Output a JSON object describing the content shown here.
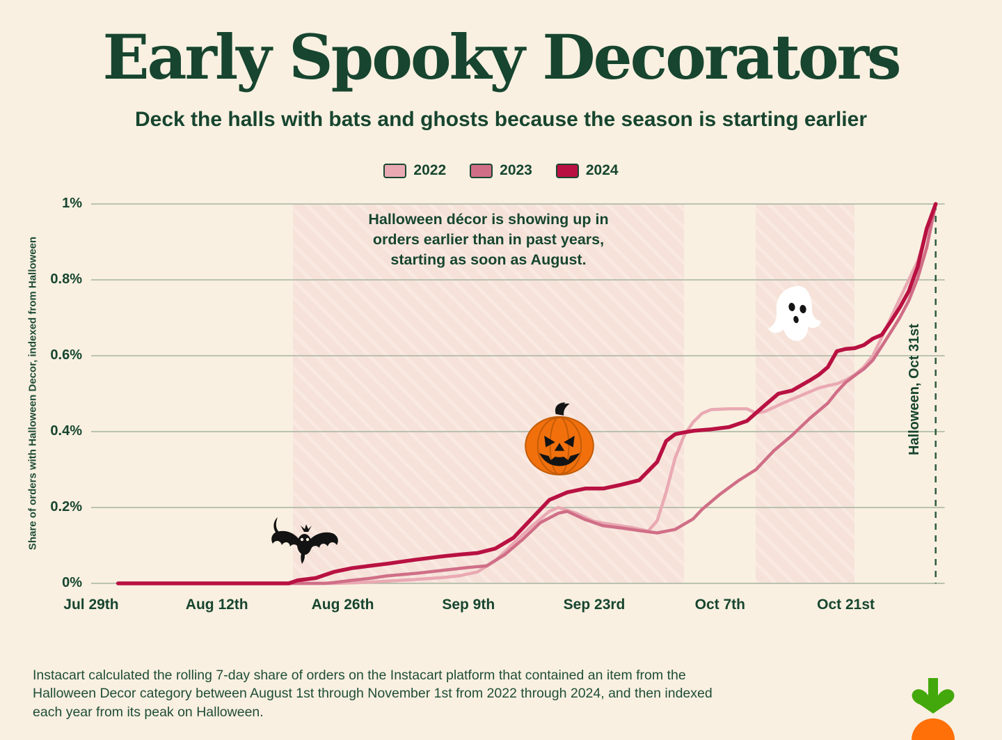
{
  "header": {
    "title": "Early Spooky Decorators",
    "subtitle": "Deck the halls with bats and ghosts because the season is starting earlier"
  },
  "legend": {
    "items": [
      {
        "label": "2022",
        "color": "#e9a9b3"
      },
      {
        "label": "2023",
        "color": "#d06e87"
      },
      {
        "label": "2024",
        "color": "#b81142"
      }
    ]
  },
  "chart": {
    "y_axis_title": "Share of orders with Halloween Decor, indexed from Halloween",
    "annotation": "Halloween décor is showing up in\norders earlier than in past years,\nstarting as soon as August.",
    "halloween_label": "Halloween, Oct 31st"
  },
  "chart_data": {
    "type": "line",
    "title": "Early Spooky Decorators",
    "xlabel": "",
    "ylabel": "Share of orders with Halloween Decor, indexed from Halloween",
    "x_unit": "days since Aug 1",
    "xlim_days": [
      -3,
      92
    ],
    "ylim": [
      0,
      1
    ],
    "grid": true,
    "legend_position": "top-center",
    "x_ticks": [
      {
        "label": "Jul 29th",
        "day": -3
      },
      {
        "label": "Aug 12th",
        "day": 11
      },
      {
        "label": "Aug 26th",
        "day": 25
      },
      {
        "label": "Sep 9th",
        "day": 39
      },
      {
        "label": "Sep 23rd",
        "day": 53
      },
      {
        "label": "Oct 7th",
        "day": 67
      },
      {
        "label": "Oct 21st",
        "day": 81
      }
    ],
    "y_ticks": [
      {
        "label": "0%",
        "value": 0
      },
      {
        "label": "0.2%",
        "value": 0.2
      },
      {
        "label": "0.4%",
        "value": 0.4
      },
      {
        "label": "0.6%",
        "value": 0.6
      },
      {
        "label": "0.8%",
        "value": 0.8
      },
      {
        "label": "1%",
        "value": 1
      }
    ],
    "halloween_day": 91,
    "shaded_regions": [
      {
        "start_day": 19.5,
        "end_day": 63
      },
      {
        "start_day": 71,
        "end_day": 82
      }
    ],
    "series": [
      {
        "name": "2022",
        "color": "#e9a9b3",
        "width": 4.5,
        "points": [
          [
            0,
            0
          ],
          [
            6,
            0
          ],
          [
            12,
            0
          ],
          [
            18,
            0
          ],
          [
            24,
            0
          ],
          [
            27,
            0.002
          ],
          [
            30,
            0.006
          ],
          [
            33,
            0.01
          ],
          [
            36,
            0.015
          ],
          [
            38,
            0.02
          ],
          [
            40,
            0.03
          ],
          [
            41,
            0.045
          ],
          [
            42,
            0.06
          ],
          [
            44,
            0.105
          ],
          [
            46,
            0.15
          ],
          [
            48,
            0.19
          ],
          [
            49,
            0.2
          ],
          [
            51,
            0.185
          ],
          [
            53,
            0.163
          ],
          [
            55,
            0.155
          ],
          [
            57,
            0.148
          ],
          [
            59,
            0.138
          ],
          [
            60,
            0.165
          ],
          [
            61,
            0.24
          ],
          [
            62,
            0.33
          ],
          [
            63,
            0.39
          ],
          [
            64,
            0.425
          ],
          [
            65,
            0.448
          ],
          [
            66,
            0.458
          ],
          [
            68,
            0.46
          ],
          [
            70,
            0.46
          ],
          [
            71,
            0.449
          ],
          [
            72,
            0.453
          ],
          [
            74,
            0.475
          ],
          [
            76,
            0.495
          ],
          [
            78,
            0.515
          ],
          [
            79,
            0.521
          ],
          [
            80,
            0.526
          ],
          [
            81,
            0.536
          ],
          [
            82,
            0.55
          ],
          [
            83,
            0.57
          ],
          [
            84,
            0.6
          ],
          [
            85,
            0.648
          ],
          [
            86,
            0.7
          ],
          [
            87,
            0.75
          ],
          [
            88,
            0.8
          ],
          [
            89,
            0.85
          ],
          [
            90,
            0.925
          ],
          [
            91,
            1
          ]
        ]
      },
      {
        "name": "2023",
        "color": "#d06e87",
        "width": 4.5,
        "points": [
          [
            0,
            0
          ],
          [
            6,
            0
          ],
          [
            12,
            0
          ],
          [
            18,
            0
          ],
          [
            23,
            0
          ],
          [
            24,
            0.002
          ],
          [
            26,
            0.008
          ],
          [
            28,
            0.013
          ],
          [
            30,
            0.02
          ],
          [
            33,
            0.026
          ],
          [
            36,
            0.034
          ],
          [
            39,
            0.042
          ],
          [
            41,
            0.046
          ],
          [
            43,
            0.075
          ],
          [
            45,
            0.115
          ],
          [
            47,
            0.16
          ],
          [
            49,
            0.185
          ],
          [
            50,
            0.19
          ],
          [
            52,
            0.168
          ],
          [
            54,
            0.152
          ],
          [
            56,
            0.146
          ],
          [
            58,
            0.139
          ],
          [
            60,
            0.133
          ],
          [
            62,
            0.142
          ],
          [
            64,
            0.17
          ],
          [
            65,
            0.195
          ],
          [
            67,
            0.235
          ],
          [
            69,
            0.27
          ],
          [
            71,
            0.3
          ],
          [
            73,
            0.35
          ],
          [
            75,
            0.39
          ],
          [
            77,
            0.435
          ],
          [
            79,
            0.475
          ],
          [
            80,
            0.505
          ],
          [
            81,
            0.53
          ],
          [
            82,
            0.548
          ],
          [
            83,
            0.565
          ],
          [
            84,
            0.588
          ],
          [
            85,
            0.625
          ],
          [
            86,
            0.662
          ],
          [
            87,
            0.7
          ],
          [
            88,
            0.745
          ],
          [
            89,
            0.805
          ],
          [
            90,
            0.885
          ],
          [
            91,
            1
          ]
        ]
      },
      {
        "name": "2024",
        "color": "#b81142",
        "width": 5.5,
        "points": [
          [
            0,
            0
          ],
          [
            6,
            0
          ],
          [
            12,
            0
          ],
          [
            19,
            0
          ],
          [
            20,
            0.008
          ],
          [
            22,
            0.014
          ],
          [
            24,
            0.03
          ],
          [
            26,
            0.04
          ],
          [
            28,
            0.046
          ],
          [
            30,
            0.052
          ],
          [
            33,
            0.062
          ],
          [
            36,
            0.071
          ],
          [
            38,
            0.076
          ],
          [
            40,
            0.08
          ],
          [
            42,
            0.092
          ],
          [
            44,
            0.12
          ],
          [
            46,
            0.17
          ],
          [
            48,
            0.22
          ],
          [
            50,
            0.24
          ],
          [
            52,
            0.25
          ],
          [
            54,
            0.25
          ],
          [
            56,
            0.26
          ],
          [
            58,
            0.272
          ],
          [
            60,
            0.32
          ],
          [
            61,
            0.375
          ],
          [
            62,
            0.393
          ],
          [
            63,
            0.398
          ],
          [
            64,
            0.402
          ],
          [
            66,
            0.406
          ],
          [
            68,
            0.412
          ],
          [
            70,
            0.428
          ],
          [
            72,
            0.47
          ],
          [
            73.5,
            0.5
          ],
          [
            75,
            0.508
          ],
          [
            77,
            0.535
          ],
          [
            78,
            0.55
          ],
          [
            79,
            0.57
          ],
          [
            80,
            0.612
          ],
          [
            81,
            0.618
          ],
          [
            82,
            0.62
          ],
          [
            83,
            0.628
          ],
          [
            84,
            0.645
          ],
          [
            85,
            0.655
          ],
          [
            86,
            0.69
          ],
          [
            87,
            0.727
          ],
          [
            88,
            0.77
          ],
          [
            89,
            0.835
          ],
          [
            90,
            0.935
          ],
          [
            91,
            1
          ]
        ]
      }
    ]
  },
  "footer": {
    "text": "Instacart calculated the rolling 7-day share of orders on the Instacart platform that contained an item from the\nHalloween Decor category between August 1st through November 1st from 2022 through 2024, and then indexed\neach year from its peak on Halloween."
  },
  "colors": {
    "background": "#f9f0e1",
    "text_green": "#17452f",
    "gridline": "#a6b4a0",
    "dashed_line": "#2d5a43",
    "region_fill": "#f6e2d9",
    "region_stripe": "#f9e9e1",
    "logo_green": "#43a80b",
    "logo_orange": "#ff7009"
  }
}
